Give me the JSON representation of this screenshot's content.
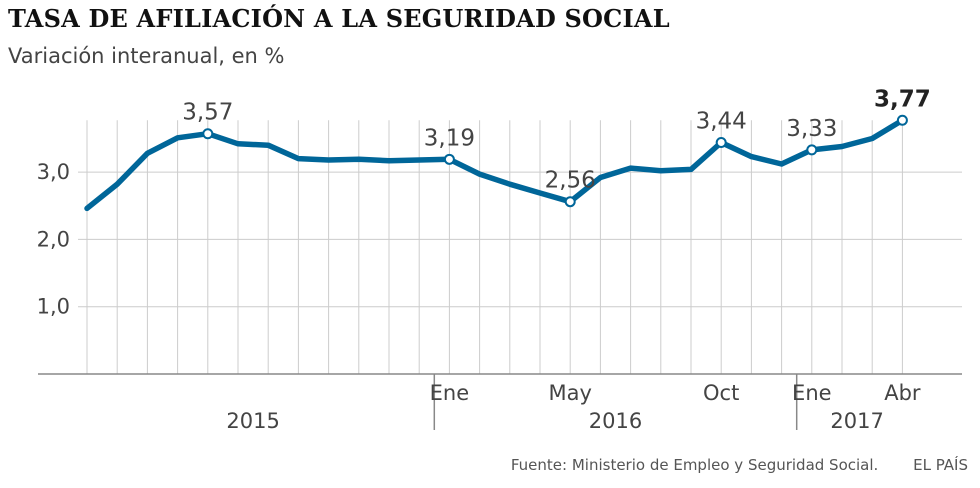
{
  "title": "TASA DE AFILIACIÓN A LA SEGURIDAD SOCIAL",
  "subtitle": "Variación interanual, en %",
  "source": "Fuente: Ministerio de Empleo y Seguridad Social.",
  "brand": "EL PAÍS",
  "colors": {
    "line": "#006699",
    "grid": "#cccccc",
    "axis": "#888888"
  },
  "chart_data": {
    "type": "line",
    "x": [
      "2015-01",
      "2015-02",
      "2015-03",
      "2015-04",
      "2015-05",
      "2015-06",
      "2015-07",
      "2015-08",
      "2015-09",
      "2015-10",
      "2015-11",
      "2015-12",
      "2016-01",
      "2016-02",
      "2016-03",
      "2016-04",
      "2016-05",
      "2016-06",
      "2016-07",
      "2016-08",
      "2016-09",
      "2016-10",
      "2016-11",
      "2016-12",
      "2017-01",
      "2017-02",
      "2017-03",
      "2017-04"
    ],
    "series": [
      {
        "values": [
          2.46,
          2.82,
          3.28,
          3.51,
          3.57,
          3.42,
          3.4,
          3.2,
          3.18,
          3.19,
          3.17,
          3.18,
          3.19,
          2.97,
          2.82,
          2.69,
          2.56,
          2.92,
          3.06,
          3.02,
          3.04,
          3.44,
          3.23,
          3.12,
          3.33,
          3.38,
          3.5,
          3.77
        ]
      }
    ],
    "ylim": [
      0,
      3.77
    ],
    "yticks": [
      "1,0",
      "2,0",
      "3,0"
    ],
    "ytick_values": [
      1,
      2,
      3
    ],
    "month_labels": [
      {
        "index": 12,
        "label": "Ene"
      },
      {
        "index": 16,
        "label": "May"
      },
      {
        "index": 21,
        "label": "Oct"
      },
      {
        "index": 24,
        "label": "Ene"
      },
      {
        "index": 27,
        "label": "Abr"
      }
    ],
    "year_labels": [
      {
        "label": "2015",
        "from": 0,
        "to": 11
      },
      {
        "label": "2016",
        "from": 12,
        "to": 23
      },
      {
        "label": "2017",
        "from": 24,
        "to": 27
      }
    ],
    "annotations": [
      {
        "index": 4,
        "label": "3,57",
        "bold": false
      },
      {
        "index": 12,
        "label": "3,19",
        "bold": false
      },
      {
        "index": 16,
        "label": "2,56",
        "bold": false
      },
      {
        "index": 21,
        "label": "3,44",
        "bold": false
      },
      {
        "index": 24,
        "label": "3,33",
        "bold": false
      },
      {
        "index": 27,
        "label": "3,77",
        "bold": true
      }
    ],
    "grid": true
  }
}
